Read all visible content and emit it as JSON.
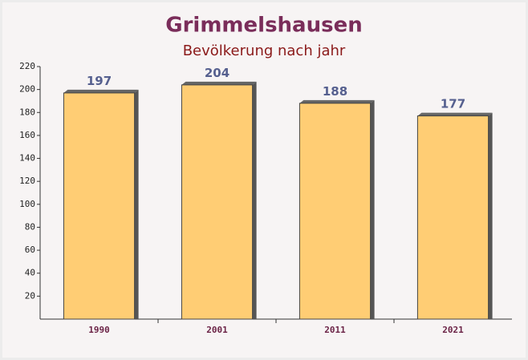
{
  "chart_data": {
    "type": "bar",
    "title": "Grimmelshausen",
    "subtitle": "Bevölkerung nach jahr",
    "categories": [
      "1990",
      "2001",
      "2011",
      "2021"
    ],
    "values": [
      197,
      204,
      188,
      177
    ],
    "color": "#ffc966",
    "ylim": [
      0,
      220
    ],
    "yticks": [
      20,
      40,
      60,
      80,
      100,
      120,
      140,
      160,
      180,
      200,
      220
    ]
  }
}
